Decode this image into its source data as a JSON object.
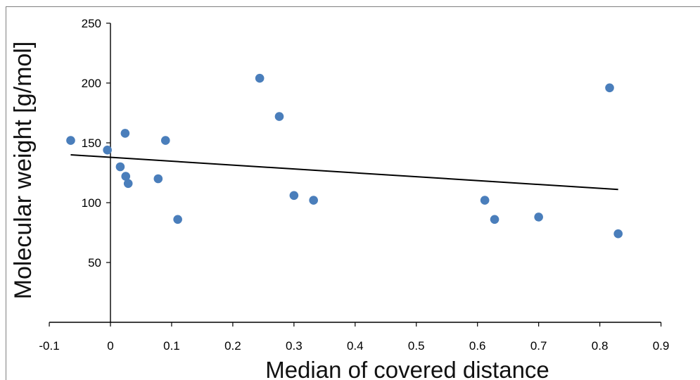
{
  "chart_data": {
    "type": "scatter",
    "title": "",
    "xlabel": "Median of covered distance",
    "ylabel": "Molecular weight  [g/mol]",
    "xlim": [
      -0.1,
      0.9
    ],
    "ylim": [
      0,
      250
    ],
    "x_ticks": [
      -0.1,
      0,
      0.1,
      0.2,
      0.3,
      0.4,
      0.5,
      0.6,
      0.7,
      0.8,
      0.9
    ],
    "x_tick_labels": [
      "-0.1",
      "0",
      "0.1",
      "0.2",
      "0.3",
      "0.4",
      "0.5",
      "0.6",
      "0.7",
      "0.8",
      "0.9"
    ],
    "y_ticks": [
      50,
      100,
      150,
      200,
      250
    ],
    "y_tick_labels": [
      "50",
      "100",
      "150",
      "200",
      "250"
    ],
    "grid": false,
    "legend": "none",
    "marker_color": "#4a7ebb",
    "trendline_color": "#000000",
    "points": [
      {
        "x": -0.065,
        "y": 152
      },
      {
        "x": -0.005,
        "y": 144
      },
      {
        "x": 0.016,
        "y": 130
      },
      {
        "x": 0.024,
        "y": 158
      },
      {
        "x": 0.025,
        "y": 122
      },
      {
        "x": 0.029,
        "y": 116
      },
      {
        "x": 0.078,
        "y": 120
      },
      {
        "x": 0.09,
        "y": 152
      },
      {
        "x": 0.11,
        "y": 86
      },
      {
        "x": 0.244,
        "y": 204
      },
      {
        "x": 0.276,
        "y": 172
      },
      {
        "x": 0.3,
        "y": 106
      },
      {
        "x": 0.332,
        "y": 102
      },
      {
        "x": 0.612,
        "y": 102
      },
      {
        "x": 0.628,
        "y": 86
      },
      {
        "x": 0.7,
        "y": 88
      },
      {
        "x": 0.816,
        "y": 196
      },
      {
        "x": 0.83,
        "y": 74
      }
    ],
    "trendline": [
      {
        "x": -0.065,
        "y": 140
      },
      {
        "x": 0.83,
        "y": 111
      }
    ]
  }
}
